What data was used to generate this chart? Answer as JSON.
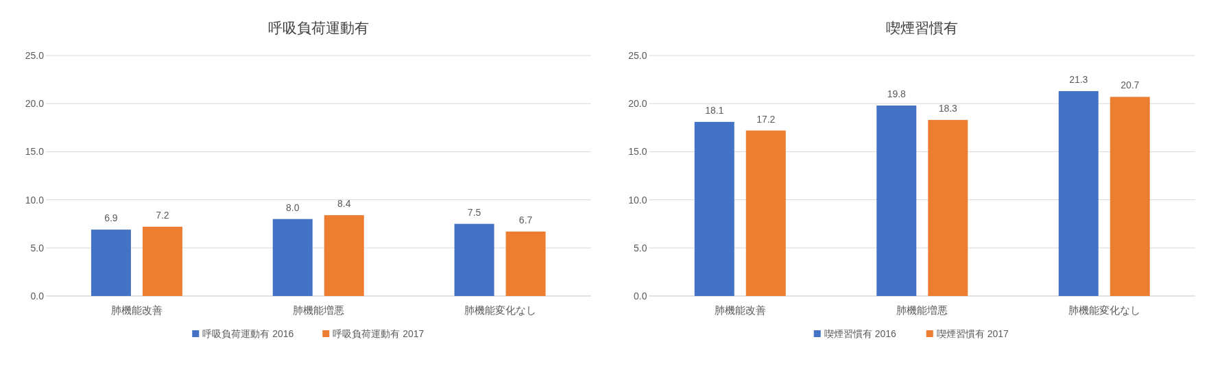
{
  "chart_data": [
    {
      "type": "bar",
      "title": "呼吸負荷運動有",
      "categories": [
        "肺機能改善",
        "肺機能増悪",
        "肺機能変化なし"
      ],
      "series": [
        {
          "name": "呼吸負荷運動有 2016",
          "color": "#4472c4",
          "values": [
            6.9,
            8.0,
            7.5
          ],
          "value_labels": [
            "6.9",
            "8.0",
            "7.5"
          ]
        },
        {
          "name": "呼吸負荷運動有 2017",
          "color": "#ed7d31",
          "values": [
            7.2,
            8.4,
            6.7
          ],
          "value_labels": [
            "7.2",
            "8.4",
            "6.7"
          ]
        }
      ],
      "ylim": [
        0,
        25
      ],
      "yticks": [
        {
          "value": 0,
          "label": "0.0"
        },
        {
          "value": 5,
          "label": "5.0"
        },
        {
          "value": 10,
          "label": "10.0"
        },
        {
          "value": 15,
          "label": "15.0"
        },
        {
          "value": 20,
          "label": "20.0"
        },
        {
          "value": 25,
          "label": "25.0"
        }
      ],
      "grid": "y",
      "legend": "bottom"
    },
    {
      "type": "bar",
      "title": "喫煙習慣有",
      "categories": [
        "肺機能改善",
        "肺機能増悪",
        "肺機能変化なし"
      ],
      "series": [
        {
          "name": "喫煙習慣有 2016",
          "color": "#4472c4",
          "values": [
            18.1,
            19.8,
            21.3
          ],
          "value_labels": [
            "18.1",
            "19.8",
            "21.3"
          ]
        },
        {
          "name": "喫煙習慣有 2017",
          "color": "#ed7d31",
          "values": [
            17.2,
            18.3,
            20.7
          ],
          "value_labels": [
            "17.2",
            "18.3",
            "20.7"
          ]
        }
      ],
      "ylim": [
        0,
        25
      ],
      "yticks": [
        {
          "value": 0,
          "label": "0.0"
        },
        {
          "value": 5,
          "label": "5.0"
        },
        {
          "value": 10,
          "label": "10.0"
        },
        {
          "value": 15,
          "label": "15.0"
        },
        {
          "value": 20,
          "label": "20.0"
        },
        {
          "value": 25,
          "label": "25.0"
        }
      ],
      "grid": "y",
      "legend": "bottom"
    }
  ]
}
